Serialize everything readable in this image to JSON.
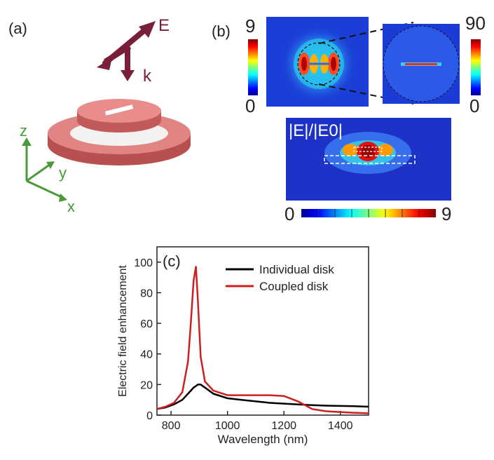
{
  "panel_a": {
    "label": "(a)",
    "field_label": "E",
    "wavevector_label": "k",
    "axes": {
      "z": "z",
      "y": "y",
      "x": "x"
    },
    "colors": {
      "vectors": "#7a1f3a",
      "axes": "#4a9a3a",
      "disk": "#d9706f"
    }
  },
  "panel_b": {
    "label": "(b)",
    "map_left": {
      "cb_max": "9",
      "cb_min": "0"
    },
    "map_right": {
      "cb_max": "90",
      "cb_min": "0"
    },
    "map_bottom": {
      "title": "|E|/|E0|",
      "cb_min": "0",
      "cb_max": "9"
    }
  },
  "chart_data": {
    "type": "line",
    "panel_label": "(c)",
    "title": "",
    "xlabel": "Wavelength (nm)",
    "ylabel": "Electric field enhancement",
    "xlim": [
      750,
      1500
    ],
    "ylim": [
      0,
      110
    ],
    "xticks": [
      800,
      1000,
      1200,
      1400
    ],
    "yticks": [
      0,
      20,
      40,
      60,
      80,
      100
    ],
    "legend_position": "top-right",
    "x": [
      750,
      780,
      810,
      840,
      860,
      870,
      880,
      888,
      895,
      905,
      920,
      950,
      1000,
      1050,
      1100,
      1150,
      1200,
      1250,
      1300,
      1350,
      1400,
      1450,
      1500
    ],
    "series": [
      {
        "name": "Individual disk",
        "color": "#000000",
        "values": [
          4,
          5,
          7,
          10,
          14,
          16,
          18,
          19,
          20,
          20,
          18,
          14,
          11,
          10,
          9,
          8,
          7.5,
          7,
          6.5,
          6.2,
          6,
          5.8,
          5.5
        ]
      },
      {
        "name": "Coupled disk",
        "color": "#cc1f1f",
        "values": [
          4,
          5.5,
          8,
          15,
          35,
          60,
          88,
          97,
          75,
          38,
          22,
          16,
          13,
          13,
          13,
          13,
          12.5,
          9,
          4,
          2.5,
          2,
          1.5,
          1.2
        ]
      }
    ]
  }
}
